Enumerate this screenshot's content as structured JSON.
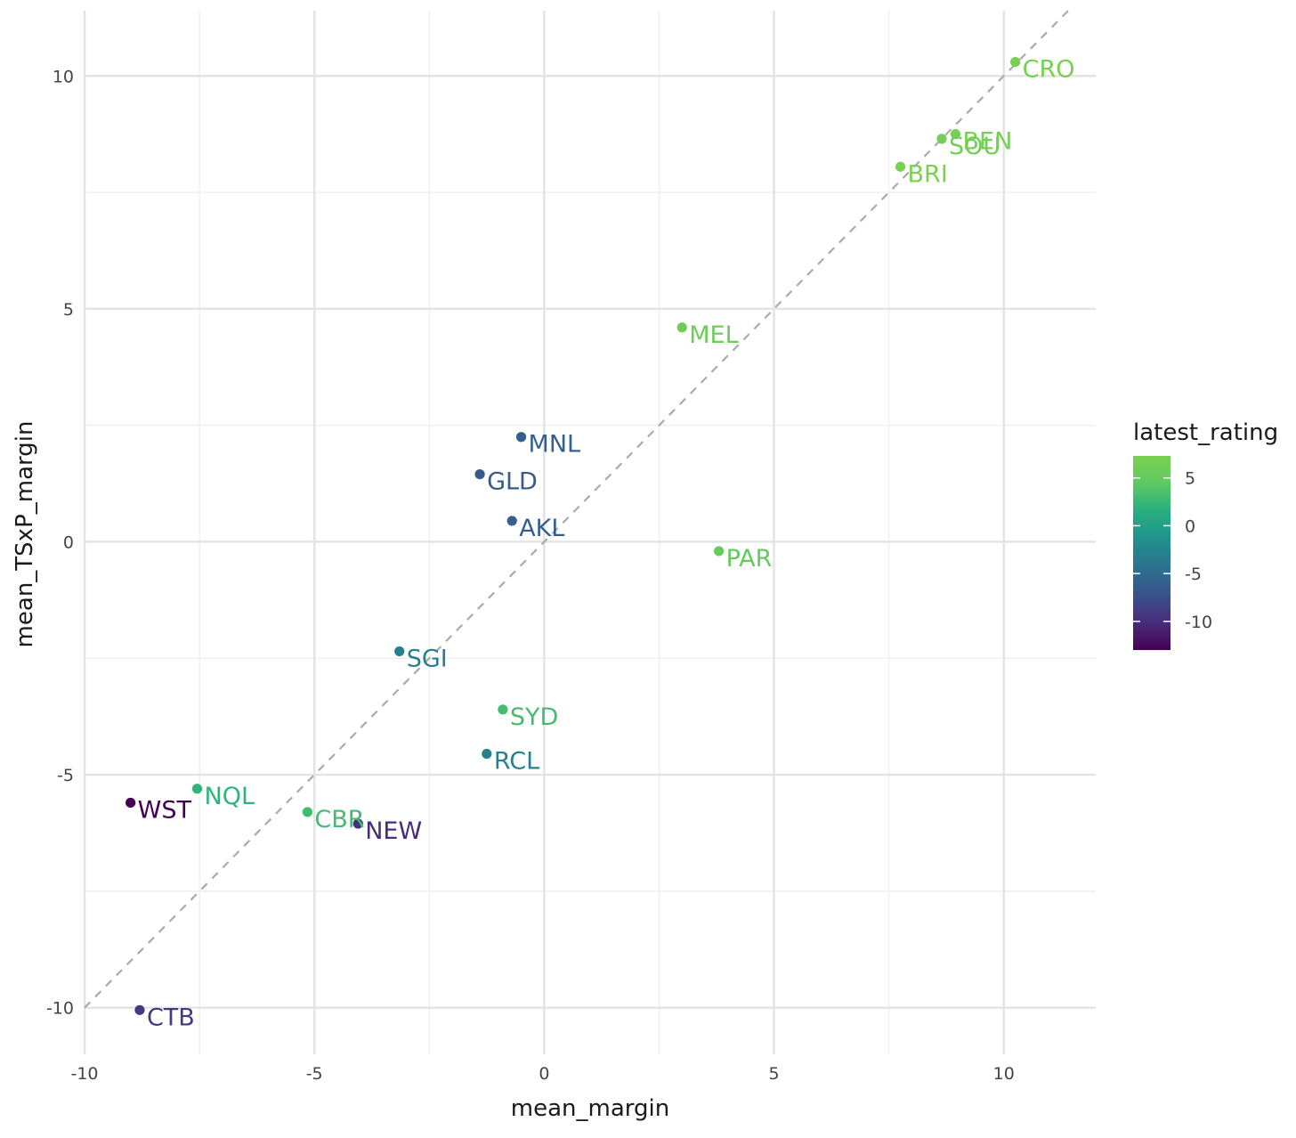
{
  "chart_data": {
    "type": "scatter",
    "title": "",
    "xlabel": "mean_margin",
    "ylabel": "mean_TSxP_margin",
    "xlim": [
      -10,
      12
    ],
    "ylim": [
      -11,
      11.4
    ],
    "x_ticks": [
      -10,
      -5,
      0,
      5,
      10
    ],
    "x_tick_labels": [
      "-10",
      "-5",
      "0",
      "5",
      "10"
    ],
    "y_ticks": [
      -10,
      -5,
      0,
      5,
      10
    ],
    "y_tick_labels": [
      "-10",
      "-5",
      "0",
      "5",
      "10"
    ],
    "grid": true,
    "reference_line": {
      "slope": 1,
      "intercept": 0,
      "style": "dashed",
      "color": "#aaaaaa"
    },
    "points": [
      {
        "label": "CRO",
        "x": 10.25,
        "y": 10.3,
        "rating": 7.0
      },
      {
        "label": "BEN",
        "x": 8.95,
        "y": 8.75,
        "rating": 6.8
      },
      {
        "label": "SOU",
        "x": 8.65,
        "y": 8.65,
        "rating": 6.5
      },
      {
        "label": "BRI",
        "x": 7.75,
        "y": 8.05,
        "rating": 7.2
      },
      {
        "label": "MEL",
        "x": 3.0,
        "y": 4.6,
        "rating": 6.0
      },
      {
        "label": "MNL",
        "x": -0.5,
        "y": 2.25,
        "rating": -6.0
      },
      {
        "label": "GLD",
        "x": -1.4,
        "y": 1.45,
        "rating": -6.5
      },
      {
        "label": "AKL",
        "x": -0.7,
        "y": 0.45,
        "rating": -6.0
      },
      {
        "label": "PAR",
        "x": 3.8,
        "y": -0.2,
        "rating": 5.0
      },
      {
        "label": "SGI",
        "x": -3.15,
        "y": -2.35,
        "rating": -3.0
      },
      {
        "label": "SYD",
        "x": -0.9,
        "y": -3.6,
        "rating": 3.0
      },
      {
        "label": "RCL",
        "x": -1.25,
        "y": -4.55,
        "rating": -3.0
      },
      {
        "label": "NQL",
        "x": -7.55,
        "y": -5.3,
        "rating": 2.0
      },
      {
        "label": "WST",
        "x": -9.0,
        "y": -5.6,
        "rating": -13.0
      },
      {
        "label": "CBR",
        "x": -5.15,
        "y": -5.8,
        "rating": 3.0
      },
      {
        "label": "NEW",
        "x": -4.05,
        "y": -6.05,
        "rating": -10.0
      },
      {
        "label": "CTB",
        "x": -8.8,
        "y": -10.05,
        "rating": -9.0
      }
    ],
    "legend": {
      "title": "latest_rating",
      "placement": "right",
      "range": [
        -13,
        7.3
      ],
      "ticks": [
        5,
        0,
        -5,
        -10
      ],
      "tick_labels": [
        "5",
        "0",
        "-5",
        "-10"
      ],
      "colors": [
        "#440154",
        "#472d7b",
        "#3b528b",
        "#2c728e",
        "#21918c",
        "#28ae80",
        "#5ec962",
        "#7ad151"
      ]
    }
  }
}
